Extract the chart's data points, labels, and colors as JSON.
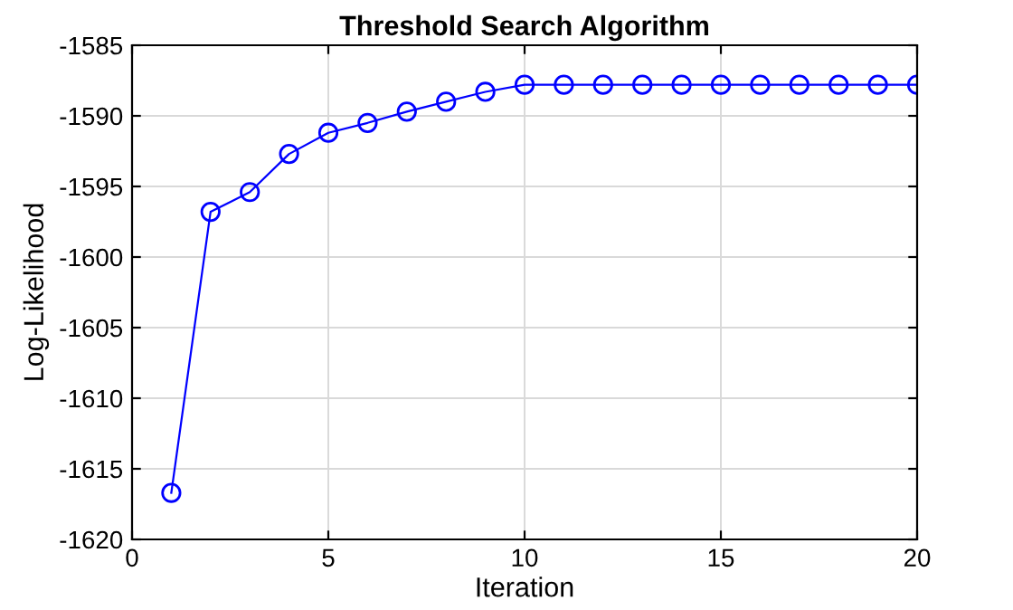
{
  "chart_data": {
    "type": "line",
    "title": "Threshold Search Algorithm",
    "xlabel": "Iteration",
    "ylabel": "Log-Likelihood",
    "x": [
      1,
      2,
      3,
      4,
      5,
      6,
      7,
      8,
      9,
      10,
      11,
      12,
      13,
      14,
      15,
      16,
      17,
      18,
      19,
      20
    ],
    "series": [
      {
        "color": "#0000ff",
        "values": [
          -1616.7,
          -1596.8,
          -1595.4,
          -1592.7,
          -1591.2,
          -1590.5,
          -1589.7,
          -1589.0,
          -1588.3,
          -1587.8,
          -1587.8,
          -1587.8,
          -1587.8,
          -1587.8,
          -1587.8,
          -1587.8,
          -1587.8,
          -1587.8,
          -1587.8,
          -1587.8
        ]
      }
    ],
    "xlim": [
      0,
      20
    ],
    "xticks": [
      0,
      5,
      10,
      15,
      20
    ],
    "ylim": [
      -1620,
      -1585
    ],
    "yticks": [
      -1620,
      -1615,
      -1610,
      -1605,
      -1600,
      -1595,
      -1590,
      -1585
    ],
    "grid": true,
    "marker": "circle",
    "line_style": "solid"
  }
}
